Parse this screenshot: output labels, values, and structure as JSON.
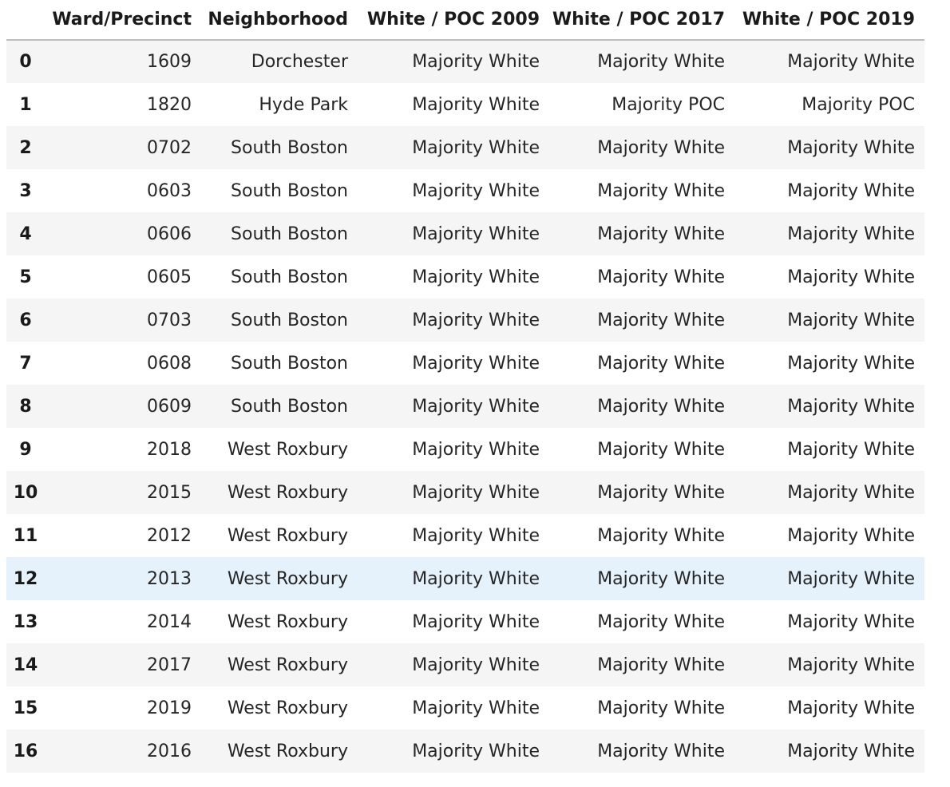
{
  "table": {
    "columns": [
      "",
      "Ward/Precinct",
      "Neighborhood",
      "White / POC 2009",
      "White / POC 2017",
      "White / POC 2019"
    ],
    "rows": [
      {
        "index": "0",
        "ward": "1609",
        "neighborhood": "Dorchester",
        "wp2009": "Majority White",
        "wp2017": "Majority White",
        "wp2019": "Majority White"
      },
      {
        "index": "1",
        "ward": "1820",
        "neighborhood": "Hyde Park",
        "wp2009": "Majority White",
        "wp2017": "Majority POC",
        "wp2019": "Majority POC"
      },
      {
        "index": "2",
        "ward": "0702",
        "neighborhood": "South Boston",
        "wp2009": "Majority White",
        "wp2017": "Majority White",
        "wp2019": "Majority White"
      },
      {
        "index": "3",
        "ward": "0603",
        "neighborhood": "South Boston",
        "wp2009": "Majority White",
        "wp2017": "Majority White",
        "wp2019": "Majority White"
      },
      {
        "index": "4",
        "ward": "0606",
        "neighborhood": "South Boston",
        "wp2009": "Majority White",
        "wp2017": "Majority White",
        "wp2019": "Majority White"
      },
      {
        "index": "5",
        "ward": "0605",
        "neighborhood": "South Boston",
        "wp2009": "Majority White",
        "wp2017": "Majority White",
        "wp2019": "Majority White"
      },
      {
        "index": "6",
        "ward": "0703",
        "neighborhood": "South Boston",
        "wp2009": "Majority White",
        "wp2017": "Majority White",
        "wp2019": "Majority White"
      },
      {
        "index": "7",
        "ward": "0608",
        "neighborhood": "South Boston",
        "wp2009": "Majority White",
        "wp2017": "Majority White",
        "wp2019": "Majority White"
      },
      {
        "index": "8",
        "ward": "0609",
        "neighborhood": "South Boston",
        "wp2009": "Majority White",
        "wp2017": "Majority White",
        "wp2019": "Majority White"
      },
      {
        "index": "9",
        "ward": "2018",
        "neighborhood": "West Roxbury",
        "wp2009": "Majority White",
        "wp2017": "Majority White",
        "wp2019": "Majority White"
      },
      {
        "index": "10",
        "ward": "2015",
        "neighborhood": "West Roxbury",
        "wp2009": "Majority White",
        "wp2017": "Majority White",
        "wp2019": "Majority White"
      },
      {
        "index": "11",
        "ward": "2012",
        "neighborhood": "West Roxbury",
        "wp2009": "Majority White",
        "wp2017": "Majority White",
        "wp2019": "Majority White"
      },
      {
        "index": "12",
        "ward": "2013",
        "neighborhood": "West Roxbury",
        "wp2009": "Majority White",
        "wp2017": "Majority White",
        "wp2019": "Majority White"
      },
      {
        "index": "13",
        "ward": "2014",
        "neighborhood": "West Roxbury",
        "wp2009": "Majority White",
        "wp2017": "Majority White",
        "wp2019": "Majority White"
      },
      {
        "index": "14",
        "ward": "2017",
        "neighborhood": "West Roxbury",
        "wp2009": "Majority White",
        "wp2017": "Majority White",
        "wp2019": "Majority White"
      },
      {
        "index": "15",
        "ward": "2019",
        "neighborhood": "West Roxbury",
        "wp2009": "Majority White",
        "wp2017": "Majority White",
        "wp2019": "Majority White"
      },
      {
        "index": "16",
        "ward": "2016",
        "neighborhood": "West Roxbury",
        "wp2009": "Majority White",
        "wp2017": "Majority White",
        "wp2019": "Majority White"
      }
    ],
    "hovered_row": 12
  },
  "colors": {
    "stripe": "#f5f5f5",
    "hover": "#e6f2fb",
    "header_rule": "#bdbdbd"
  }
}
